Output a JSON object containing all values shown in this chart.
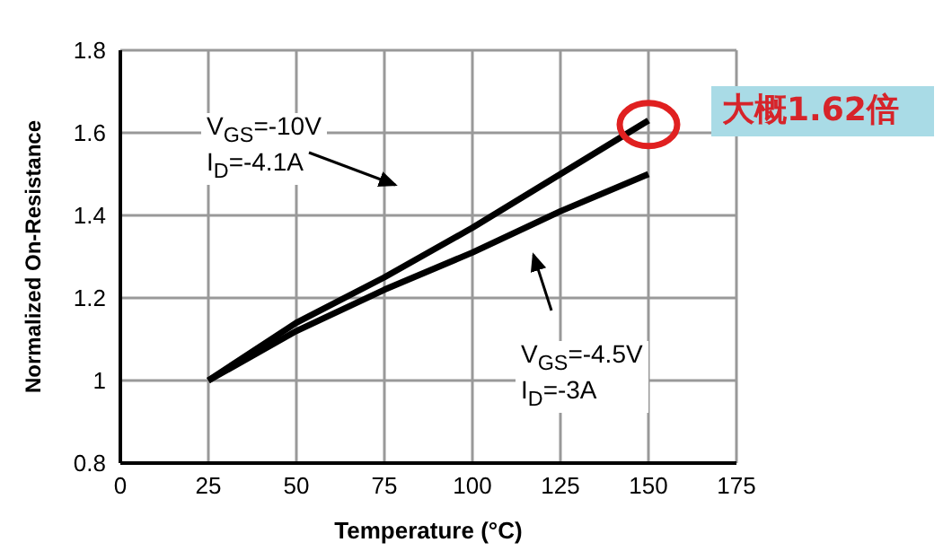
{
  "chart_data": {
    "type": "line",
    "xlabel": "Temperature (°C)",
    "ylabel": "Normalized On-Resistance",
    "x": [
      25,
      50,
      75,
      100,
      125,
      150
    ],
    "series": [
      {
        "name": "V$_{GS}$=-10V\nI$_{D}$=-4.1A",
        "color": "#000000",
        "values": [
          1.0,
          1.14,
          1.25,
          1.37,
          1.5,
          1.63
        ]
      },
      {
        "name": "V$_{GS}$=-4.5V\nI$_{D}$=-3A",
        "color": "#000000",
        "values": [
          1.0,
          1.12,
          1.22,
          1.31,
          1.41,
          1.5
        ]
      }
    ],
    "xlim": [
      0,
      175
    ],
    "xticks": [
      0,
      25,
      50,
      75,
      100,
      125,
      150,
      175
    ],
    "ylim": [
      0.8,
      1.8
    ],
    "yticks": [
      0.8,
      1,
      1.2,
      1.4,
      1.6,
      1.8
    ],
    "grid": true,
    "marker": "none",
    "line_style": "solid",
    "annotations": [
      {
        "text": "大概1.62倍",
        "x": 150,
        "y": 1.62
      }
    ]
  }
}
